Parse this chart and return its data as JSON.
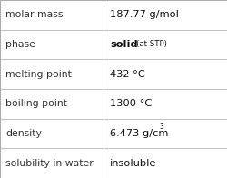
{
  "rows": [
    {
      "label": "molar mass",
      "value": "187.77 g/mol",
      "value_suffix": null,
      "value_sup": null
    },
    {
      "label": "phase",
      "value": "solid",
      "value_suffix": "(at STP)",
      "value_sup": null
    },
    {
      "label": "melting point",
      "value": "432 °C",
      "value_suffix": null,
      "value_sup": null
    },
    {
      "label": "boiling point",
      "value": "1300 °C",
      "value_suffix": null,
      "value_sup": null
    },
    {
      "label": "density",
      "value": "6.473 g/cm",
      "value_suffix": null,
      "value_sup": "3"
    },
    {
      "label": "solubility in water",
      "value": "insoluble",
      "value_suffix": null,
      "value_sup": null
    }
  ],
  "bg_color": "#ffffff",
  "border_color": "#aaaaaa",
  "label_font_size": 7.8,
  "value_font_size": 8.2,
  "suffix_font_size": 6.2,
  "sup_font_size": 5.5,
  "col_split": 0.455,
  "label_color": "#333333",
  "value_color": "#111111",
  "phase_row_idx": 1
}
